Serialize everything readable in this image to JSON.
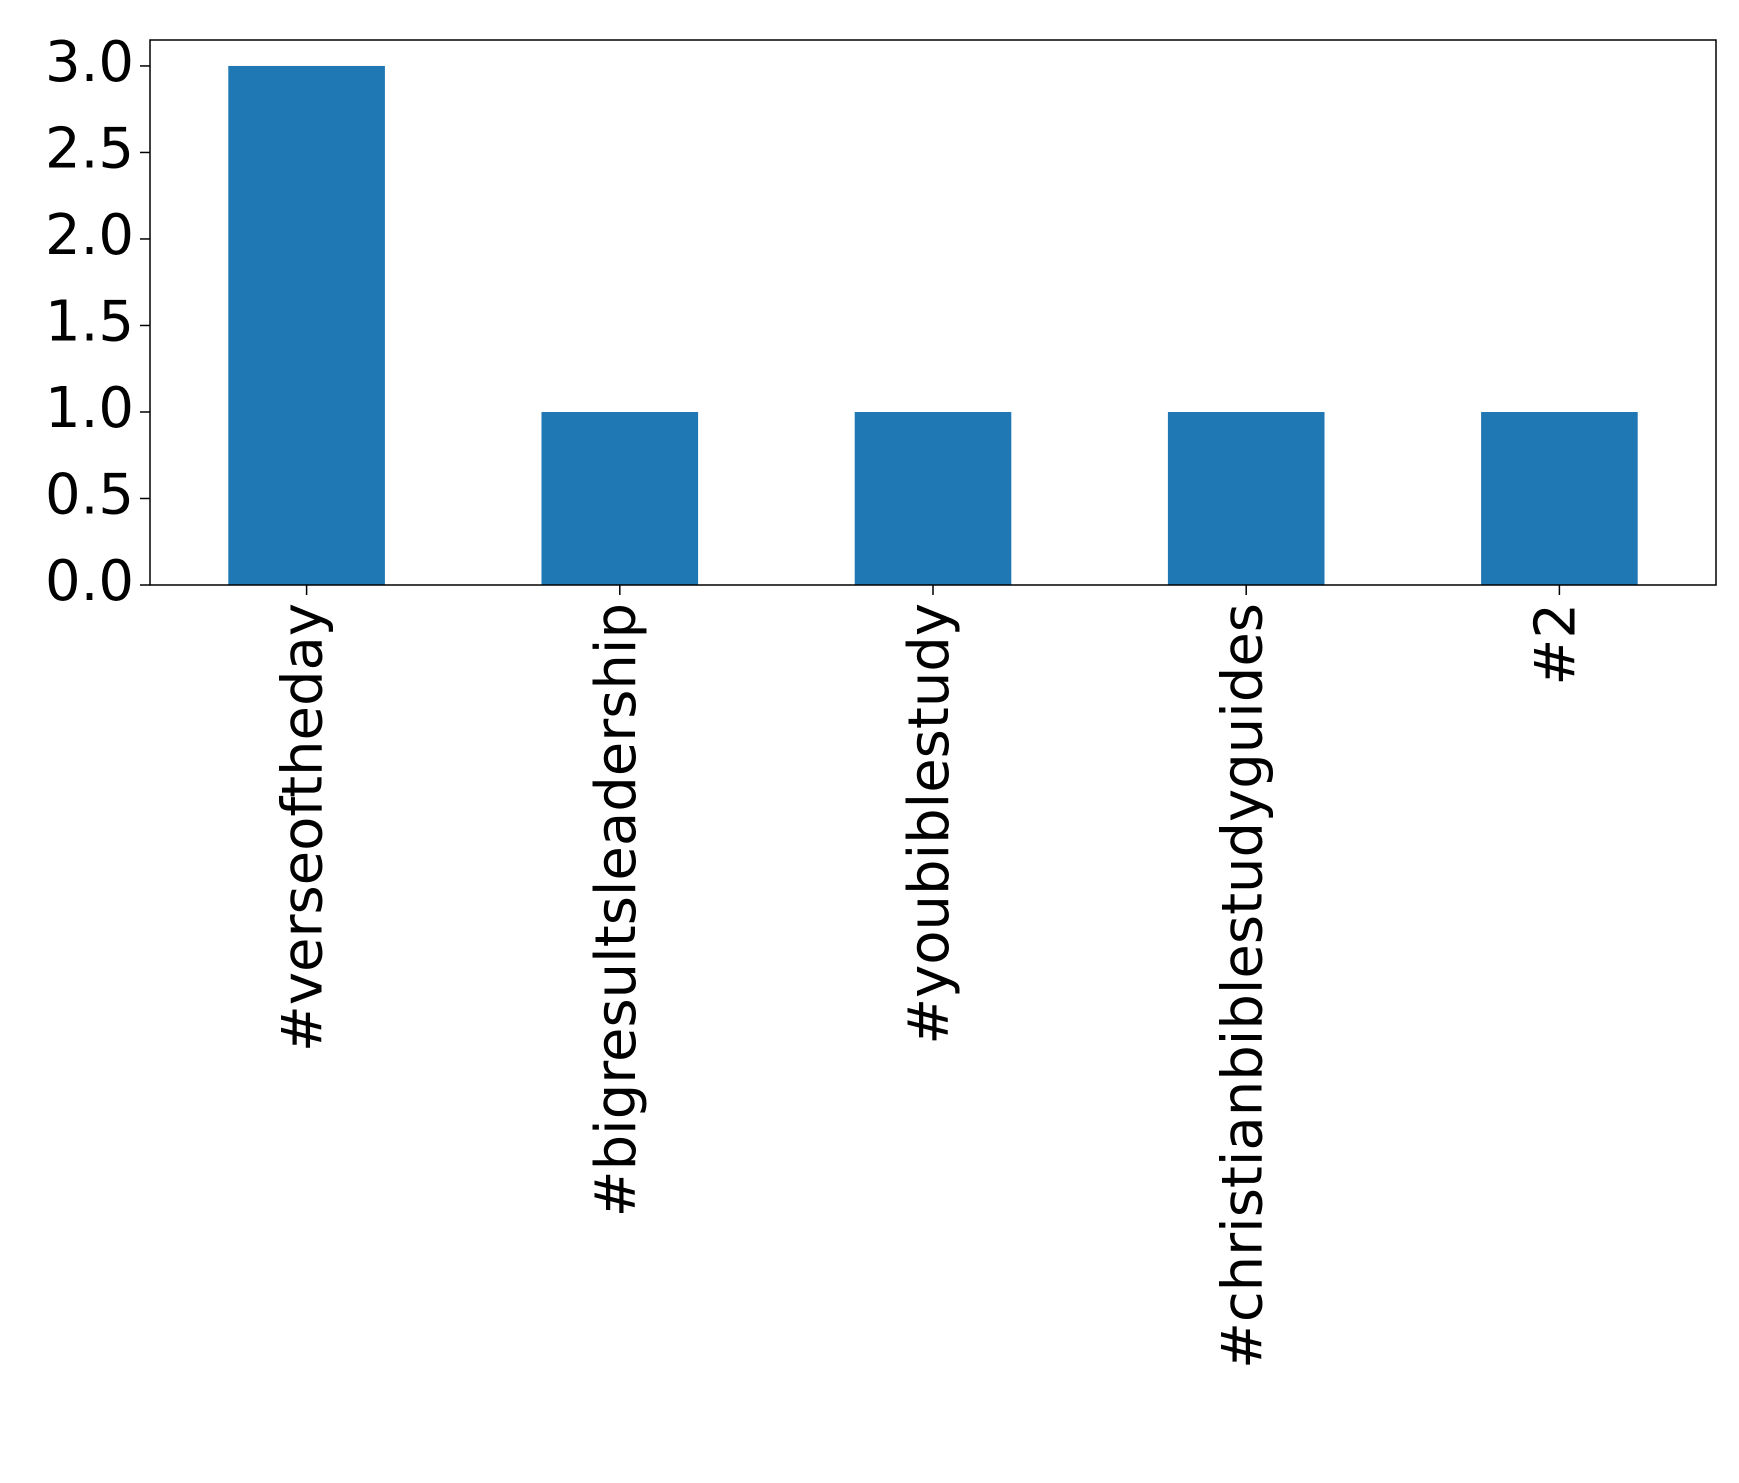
{
  "chart_data": {
    "type": "bar",
    "categories": [
      "#verseoftheday",
      "#bigresultsleadership",
      "#youbiblestudy",
      "#christianbiblestudyguides",
      "#2"
    ],
    "values": [
      3,
      1,
      1,
      1,
      1
    ],
    "color": "#1f77b4",
    "ylim": [
      0,
      3.15
    ],
    "yticks": [
      {
        "value": 0,
        "label": "0.0"
      },
      0.5,
      {
        "value": 1,
        "label": "1.0"
      },
      1.5,
      {
        "value": 2,
        "label": "2.0"
      },
      2.5,
      {
        "value": 3,
        "label": "3.0"
      }
    ],
    "grid": false
  }
}
